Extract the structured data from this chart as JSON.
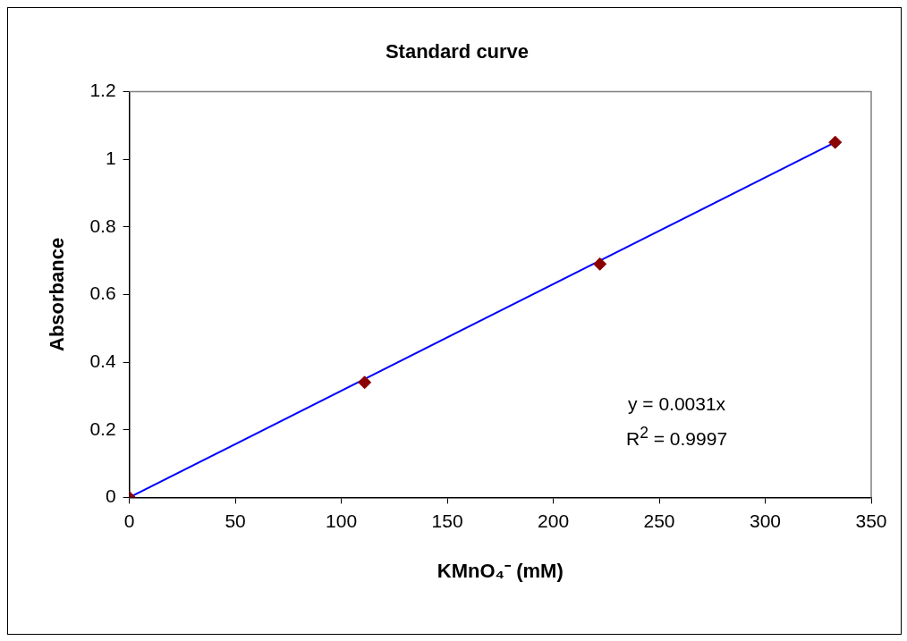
{
  "chart_data": {
    "type": "scatter",
    "title": "Standard curve",
    "xlabel": "KMnO₄⁻ (mM)",
    "ylabel": "Absorbance",
    "xlim": [
      0,
      350
    ],
    "xticks": [
      0,
      50,
      100,
      150,
      200,
      250,
      300,
      350
    ],
    "ylim": [
      0,
      1.2
    ],
    "yticks": [
      0,
      0.2,
      0.4,
      0.6,
      0.8,
      1,
      1.2
    ],
    "grid": false,
    "legend": false,
    "marker": "diamond",
    "series": [
      {
        "color": "#8b0000",
        "x": [
          0,
          111,
          222,
          333
        ],
        "values": [
          0,
          0.34,
          0.69,
          1.05
        ]
      },
      {
        "type": "line",
        "color": "#0000ff",
        "marker": "none",
        "line_style": "solid",
        "x": [
          0,
          333
        ],
        "values": [
          0,
          1.05
        ]
      }
    ],
    "annotations": [
      "y = 0.0031x",
      "R$^{2}$ = 0.9997"
    ]
  }
}
